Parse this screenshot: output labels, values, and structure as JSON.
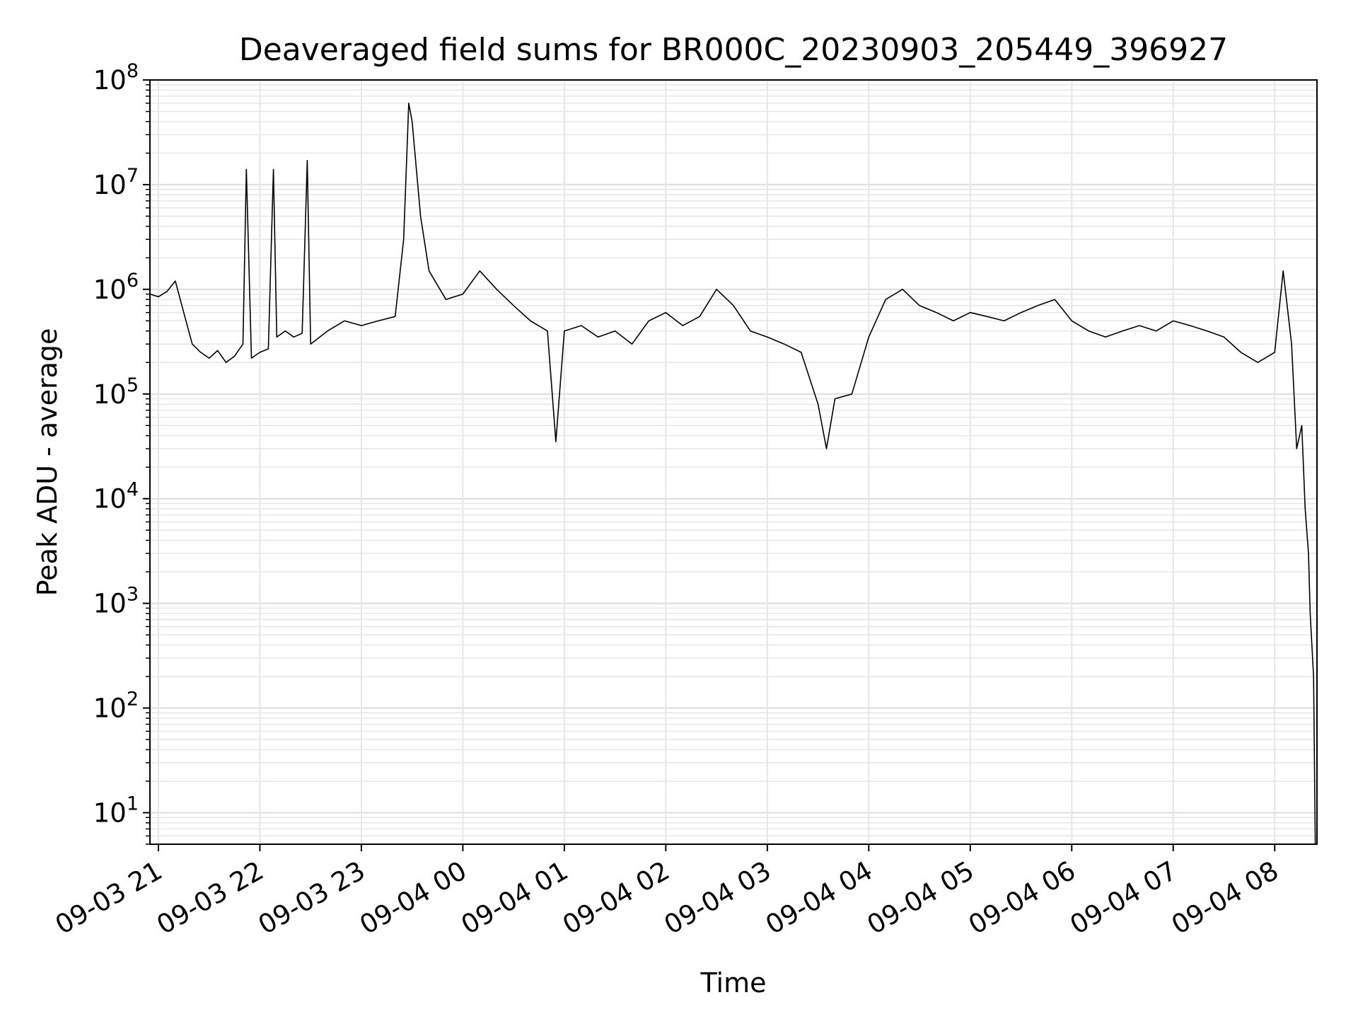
{
  "chart_data": {
    "type": "line",
    "title": "Deaveraged field sums for BR000C_20230903_205449_396927",
    "xlabel": "Time",
    "ylabel": "Peak ADU - average",
    "yscale": "log",
    "ylim": [
      5,
      100000000
    ],
    "xlim": [
      "2023-09-03 20:55",
      "2023-09-04 08:25"
    ],
    "grid": true,
    "x_ticks": [
      "09-03 21",
      "09-03 22",
      "09-03 23",
      "09-04 00",
      "09-04 01",
      "09-04 02",
      "09-04 03",
      "09-04 04",
      "09-04 05",
      "09-04 06",
      "09-04 07",
      "09-04 08"
    ],
    "y_ticks": [
      {
        "value": 10,
        "base": "10",
        "exp": "1"
      },
      {
        "value": 100,
        "base": "10",
        "exp": "2"
      },
      {
        "value": 1000,
        "base": "10",
        "exp": "3"
      },
      {
        "value": 10000,
        "base": "10",
        "exp": "4"
      },
      {
        "value": 100000,
        "base": "10",
        "exp": "5"
      },
      {
        "value": 1000000,
        "base": "10",
        "exp": "6"
      },
      {
        "value": 10000000,
        "base": "10",
        "exp": "7"
      },
      {
        "value": 100000000,
        "base": "10",
        "exp": "8"
      }
    ],
    "series": [
      {
        "color": "#000000",
        "points": [
          [
            "2023-09-03 20:55",
            900000
          ],
          [
            "2023-09-03 21:00",
            850000
          ],
          [
            "2023-09-03 21:05",
            950000
          ],
          [
            "2023-09-03 21:10",
            1200000
          ],
          [
            "2023-09-03 21:15",
            600000
          ],
          [
            "2023-09-03 21:20",
            300000
          ],
          [
            "2023-09-03 21:25",
            250000
          ],
          [
            "2023-09-03 21:30",
            220000
          ],
          [
            "2023-09-03 21:35",
            260000
          ],
          [
            "2023-09-03 21:40",
            200000
          ],
          [
            "2023-09-03 21:45",
            230000
          ],
          [
            "2023-09-03 21:50",
            300000
          ],
          [
            "2023-09-03 21:52",
            14000000
          ],
          [
            "2023-09-03 21:55",
            220000
          ],
          [
            "2023-09-03 22:00",
            250000
          ],
          [
            "2023-09-03 22:05",
            270000
          ],
          [
            "2023-09-03 22:08",
            14000000
          ],
          [
            "2023-09-03 22:10",
            350000
          ],
          [
            "2023-09-03 22:15",
            400000
          ],
          [
            "2023-09-03 22:20",
            350000
          ],
          [
            "2023-09-03 22:25",
            380000
          ],
          [
            "2023-09-03 22:28",
            17000000
          ],
          [
            "2023-09-03 22:30",
            300000
          ],
          [
            "2023-09-03 22:40",
            400000
          ],
          [
            "2023-09-03 22:50",
            500000
          ],
          [
            "2023-09-03 23:00",
            450000
          ],
          [
            "2023-09-03 23:10",
            500000
          ],
          [
            "2023-09-03 23:20",
            550000
          ],
          [
            "2023-09-03 23:25",
            3000000
          ],
          [
            "2023-09-03 23:28",
            60000000
          ],
          [
            "2023-09-03 23:30",
            40000000
          ],
          [
            "2023-09-03 23:35",
            5000000
          ],
          [
            "2023-09-03 23:40",
            1500000
          ],
          [
            "2023-09-03 23:50",
            800000
          ],
          [
            "2023-09-04 00:00",
            900000
          ],
          [
            "2023-09-04 00:10",
            1500000
          ],
          [
            "2023-09-04 00:20",
            1000000
          ],
          [
            "2023-09-04 00:30",
            700000
          ],
          [
            "2023-09-04 00:40",
            500000
          ],
          [
            "2023-09-04 00:50",
            400000
          ],
          [
            "2023-09-04 00:55",
            35000
          ],
          [
            "2023-09-04 01:00",
            400000
          ],
          [
            "2023-09-04 01:10",
            450000
          ],
          [
            "2023-09-04 01:20",
            350000
          ],
          [
            "2023-09-04 01:30",
            400000
          ],
          [
            "2023-09-04 01:40",
            300000
          ],
          [
            "2023-09-04 01:50",
            500000
          ],
          [
            "2023-09-04 02:00",
            600000
          ],
          [
            "2023-09-04 02:10",
            450000
          ],
          [
            "2023-09-04 02:20",
            550000
          ],
          [
            "2023-09-04 02:30",
            1000000
          ],
          [
            "2023-09-04 02:40",
            700000
          ],
          [
            "2023-09-04 02:50",
            400000
          ],
          [
            "2023-09-04 03:00",
            350000
          ],
          [
            "2023-09-04 03:10",
            300000
          ],
          [
            "2023-09-04 03:20",
            250000
          ],
          [
            "2023-09-04 03:30",
            80000
          ],
          [
            "2023-09-04 03:35",
            30000
          ],
          [
            "2023-09-04 03:40",
            90000
          ],
          [
            "2023-09-04 03:50",
            100000
          ],
          [
            "2023-09-04 04:00",
            350000
          ],
          [
            "2023-09-04 04:10",
            800000
          ],
          [
            "2023-09-04 04:20",
            1000000
          ],
          [
            "2023-09-04 04:30",
            700000
          ],
          [
            "2023-09-04 04:40",
            600000
          ],
          [
            "2023-09-04 04:50",
            500000
          ],
          [
            "2023-09-04 05:00",
            600000
          ],
          [
            "2023-09-04 05:10",
            550000
          ],
          [
            "2023-09-04 05:20",
            500000
          ],
          [
            "2023-09-04 05:30",
            600000
          ],
          [
            "2023-09-04 05:40",
            700000
          ],
          [
            "2023-09-04 05:50",
            800000
          ],
          [
            "2023-09-04 06:00",
            500000
          ],
          [
            "2023-09-04 06:10",
            400000
          ],
          [
            "2023-09-04 06:20",
            350000
          ],
          [
            "2023-09-04 06:30",
            400000
          ],
          [
            "2023-09-04 06:40",
            450000
          ],
          [
            "2023-09-04 06:50",
            400000
          ],
          [
            "2023-09-04 07:00",
            500000
          ],
          [
            "2023-09-04 07:10",
            450000
          ],
          [
            "2023-09-04 07:20",
            400000
          ],
          [
            "2023-09-04 07:30",
            350000
          ],
          [
            "2023-09-04 07:40",
            250000
          ],
          [
            "2023-09-04 07:50",
            200000
          ],
          [
            "2023-09-04 08:00",
            250000
          ],
          [
            "2023-09-04 08:05",
            1500000
          ],
          [
            "2023-09-04 08:10",
            300000
          ],
          [
            "2023-09-04 08:13",
            30000
          ],
          [
            "2023-09-04 08:16",
            50000
          ],
          [
            "2023-09-04 08:18",
            8000
          ],
          [
            "2023-09-04 08:20",
            3000
          ],
          [
            "2023-09-04 08:21",
            800
          ],
          [
            "2023-09-04 08:22",
            400
          ],
          [
            "2023-09-04 08:23",
            200
          ],
          [
            "2023-09-04 08:24",
            5
          ]
        ]
      }
    ]
  }
}
